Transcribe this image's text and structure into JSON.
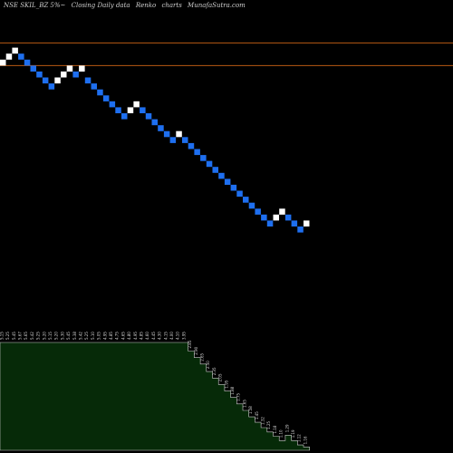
{
  "chart_data": {
    "type": "renko",
    "title": {
      "symbol": "NSE SKIL_BZ 5%~",
      "description": "Closing Daily data",
      "chart_name": "Renko",
      "chart_word": "charts",
      "site": "MunafaSutra.com"
    },
    "colors": {
      "background": "#000000",
      "up_brick": "#ffffff",
      "down_brick": "#1e6ff0",
      "reference_line": "#b85a12",
      "volume_fill": "#062a08",
      "volume_outline": "#cccccc",
      "label_text": "#d8d8d8"
    },
    "price_range": [
      0,
      190
    ],
    "reference_lines": [
      172,
      162.5
    ],
    "bricks": [
      {
        "dir": "up",
        "low": 162.5,
        "high": 165
      },
      {
        "dir": "up",
        "low": 165,
        "high": 167.5
      },
      {
        "dir": "up",
        "low": 167.5,
        "high": 170
      },
      {
        "dir": "down",
        "low": 165,
        "high": 167.5
      },
      {
        "dir": "down",
        "low": 162.5,
        "high": 165
      },
      {
        "dir": "down",
        "low": 160,
        "high": 162.5
      },
      {
        "dir": "down",
        "low": 157.5,
        "high": 160
      },
      {
        "dir": "down",
        "low": 155,
        "high": 157.5
      },
      {
        "dir": "down",
        "low": 152.5,
        "high": 155
      },
      {
        "dir": "up",
        "low": 155,
        "high": 157.5
      },
      {
        "dir": "up",
        "low": 157.5,
        "high": 160
      },
      {
        "dir": "up",
        "low": 160,
        "high": 162.5
      },
      {
        "dir": "down",
        "low": 157.5,
        "high": 160
      },
      {
        "dir": "up",
        "low": 160,
        "high": 162.5
      },
      {
        "dir": "down",
        "low": 155,
        "high": 157.5
      },
      {
        "dir": "down",
        "low": 152.5,
        "high": 155
      },
      {
        "dir": "down",
        "low": 150,
        "high": 152.5
      },
      {
        "dir": "down",
        "low": 147.5,
        "high": 150
      },
      {
        "dir": "down",
        "low": 145,
        "high": 147.5
      },
      {
        "dir": "down",
        "low": 142.5,
        "high": 145
      },
      {
        "dir": "down",
        "low": 140,
        "high": 142.5
      },
      {
        "dir": "up",
        "low": 142.5,
        "high": 145
      },
      {
        "dir": "up",
        "low": 145,
        "high": 147.5
      },
      {
        "dir": "down",
        "low": 142.5,
        "high": 145
      },
      {
        "dir": "down",
        "low": 140,
        "high": 142.5
      },
      {
        "dir": "down",
        "low": 137.5,
        "high": 140
      },
      {
        "dir": "down",
        "low": 135,
        "high": 137.5
      },
      {
        "dir": "down",
        "low": 132.5,
        "high": 135
      },
      {
        "dir": "down",
        "low": 130,
        "high": 132.5
      },
      {
        "dir": "up",
        "low": 132.5,
        "high": 135
      },
      {
        "dir": "down",
        "low": 130,
        "high": 132.5
      },
      {
        "dir": "down",
        "low": 127.5,
        "high": 130
      },
      {
        "dir": "down",
        "low": 125,
        "high": 127.5
      },
      {
        "dir": "down",
        "low": 122.5,
        "high": 125
      },
      {
        "dir": "down",
        "low": 120,
        "high": 122.5
      },
      {
        "dir": "down",
        "low": 117.5,
        "high": 120
      },
      {
        "dir": "down",
        "low": 115,
        "high": 117.5
      },
      {
        "dir": "down",
        "low": 112.5,
        "high": 115
      },
      {
        "dir": "down",
        "low": 110,
        "high": 112.5
      },
      {
        "dir": "down",
        "low": 107.5,
        "high": 110
      },
      {
        "dir": "down",
        "low": 105,
        "high": 107.5
      },
      {
        "dir": "down",
        "low": 102.5,
        "high": 105
      },
      {
        "dir": "down",
        "low": 100,
        "high": 102.5
      },
      {
        "dir": "down",
        "low": 97.5,
        "high": 100
      },
      {
        "dir": "down",
        "low": 95,
        "high": 97.5
      },
      {
        "dir": "up",
        "low": 97.5,
        "high": 100
      },
      {
        "dir": "up",
        "low": 100,
        "high": 102.5
      },
      {
        "dir": "down",
        "low": 97.5,
        "high": 100
      },
      {
        "dir": "down",
        "low": 95,
        "high": 97.5
      },
      {
        "dir": "down",
        "low": 92.5,
        "high": 95
      },
      {
        "dir": "up",
        "low": 95,
        "high": 97.5
      }
    ],
    "volume_range": [
      0,
      100
    ],
    "volume": [
      100,
      100,
      100,
      100,
      100,
      100,
      100,
      100,
      100,
      100,
      100,
      100,
      100,
      100,
      100,
      100,
      100,
      100,
      100,
      100,
      100,
      100,
      100,
      100,
      100,
      100,
      100,
      100,
      100,
      100,
      100,
      92,
      86,
      80,
      73,
      67,
      61,
      55,
      49,
      43,
      37,
      31,
      26,
      21,
      17,
      13,
      9,
      14,
      9,
      5,
      3
    ],
    "brick_labels": [
      "5.15",
      "5.25",
      "5.45",
      "5.67",
      "5.65",
      "5.42",
      "5.25",
      "5.20",
      "5.15",
      "5.20",
      "5.30",
      "5.45",
      "5.38",
      "5.42",
      "5.25",
      "5.10",
      "5.05",
      "4.95",
      "4.85",
      "4.75",
      "4.65",
      "4.80",
      "4.95",
      "4.85",
      "4.60",
      "4.45",
      "4.30",
      "4.15",
      "4.00",
      "4.10",
      "3.95",
      "2.85",
      "2.90",
      "2.65",
      "2.50",
      "2.35",
      "2.05",
      "1.95",
      "1.88",
      "1.75",
      "1.65",
      "1.58",
      "1.45",
      "1.32",
      "1.25",
      "1.18",
      "1.10",
      "1.29",
      "1.19",
      "1.12",
      "1.16"
    ]
  }
}
